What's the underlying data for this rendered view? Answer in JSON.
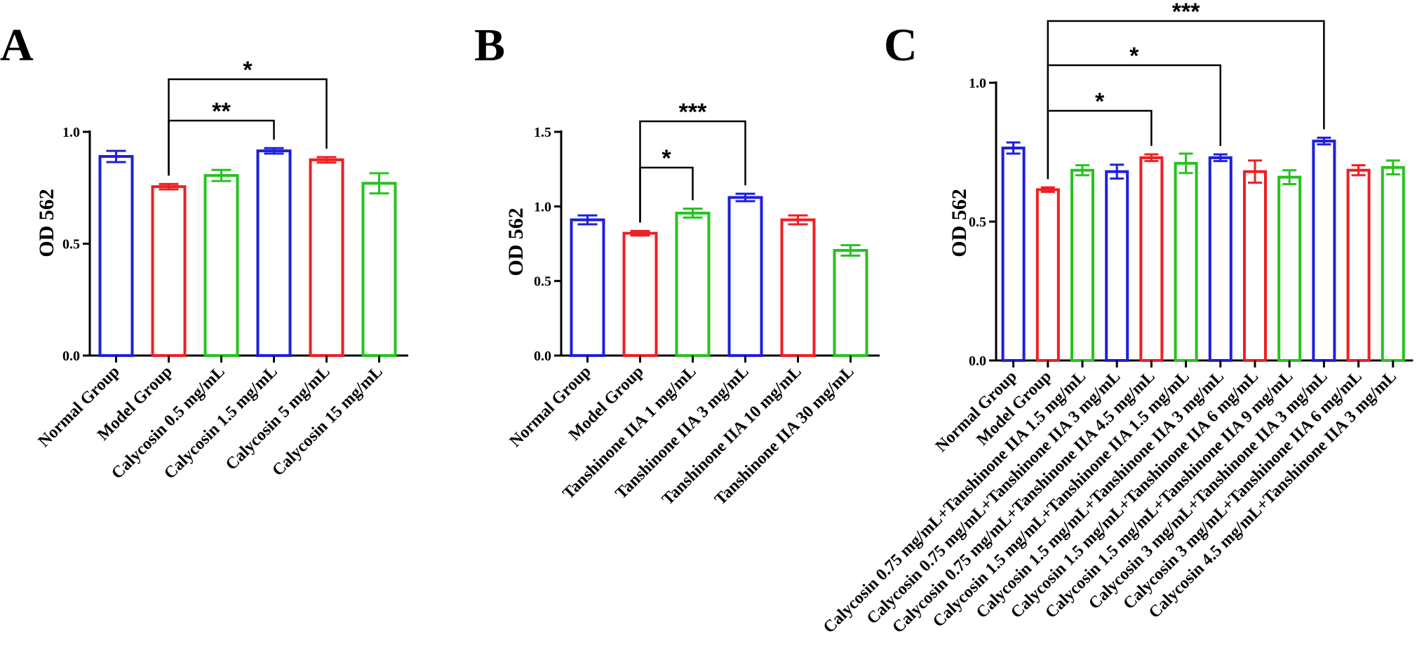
{
  "colors": {
    "blue": "#1f1fdc",
    "red": "#ee1f24",
    "green": "#27c21f",
    "axis": "#000000"
  },
  "chart_data": [
    {
      "type": "bar",
      "panel": "A",
      "ylabel": "OD 562",
      "ylim": [
        0,
        1.0
      ],
      "yticks": [
        "0.0",
        "0.5",
        "1.0"
      ],
      "categories": [
        "Normal Group",
        "Model Group",
        "Calycosin 0.5 mg/mL",
        "Calycosin 1.5 mg/mL",
        "Calycosin 5 mg/mL",
        "Calycosin 15 mg/mL"
      ],
      "values": [
        0.89,
        0.755,
        0.805,
        0.915,
        0.875,
        0.77
      ],
      "errors": [
        0.025,
        0.012,
        0.025,
        0.012,
        0.012,
        0.045
      ],
      "bar_colors": [
        "blue",
        "red",
        "green",
        "blue",
        "red",
        "green"
      ],
      "significance": [
        {
          "from": 1,
          "to": 3,
          "label": "**"
        },
        {
          "from": 1,
          "to": 4,
          "label": "*"
        }
      ]
    },
    {
      "type": "bar",
      "panel": "B",
      "ylabel": "OD 562",
      "ylim": [
        0,
        1.5
      ],
      "yticks": [
        "0.0",
        "0.5",
        "1.0",
        "1.5"
      ],
      "categories": [
        "Normal Group",
        "Model Group",
        "Tanshinone IIA 1 mg/mL",
        "Tanshinone IIA 3 mg/mL",
        "Tanshinone IIA 10 mg/mL",
        "Tanshinone IIA 30 mg/mL"
      ],
      "values": [
        0.91,
        0.82,
        0.955,
        1.06,
        0.91,
        0.705
      ],
      "errors": [
        0.03,
        0.015,
        0.03,
        0.025,
        0.03,
        0.035
      ],
      "bar_colors": [
        "blue",
        "red",
        "green",
        "blue",
        "red",
        "green"
      ],
      "significance": [
        {
          "from": 1,
          "to": 2,
          "label": "*"
        },
        {
          "from": 1,
          "to": 3,
          "label": "***"
        }
      ]
    },
    {
      "type": "bar",
      "panel": "C",
      "ylabel": "OD 562",
      "ylim": [
        0,
        1.0
      ],
      "yticks": [
        "0.0",
        "0.5",
        "1.0"
      ],
      "categories": [
        "Normal Group",
        "Model Group",
        "Calycosin 0.75 mg/mL+Tanshinone IIA 1.5 mg/mL",
        "Calycosin 0.75 mg/mL+Tanshinone IIA 3 mg/mL",
        "Calycosin 0.75 mg/mL+Tanshinone IIA 4.5 mg/mL",
        "Calycosin 1.5 mg/mL+Tanshinone IIA 1.5 mg/mL",
        "Calycosin 1.5 mg/mL+Tanshinone IIA 3 mg/mL",
        "Calycosin 1.5 mg/mL+Tanshinone IIA 6 mg/mL",
        "Calycosin 1.5 mg/mL+Tanshinone IIA 9 mg/mL",
        "Calycosin 3 mg/mL+Tanshinone IIA 3 mg/mL",
        "Calycosin 3 mg/mL+Tanshinone IIA 6 mg/mL",
        "Calycosin 4.5 mg/mL+Tanshinone IIA 3 mg/mL"
      ],
      "values": [
        0.765,
        0.615,
        0.685,
        0.68,
        0.73,
        0.71,
        0.73,
        0.68,
        0.66,
        0.79,
        0.685,
        0.695
      ],
      "errors": [
        0.02,
        0.008,
        0.018,
        0.025,
        0.012,
        0.035,
        0.012,
        0.04,
        0.025,
        0.012,
        0.018,
        0.025
      ],
      "bar_colors": [
        "blue",
        "red",
        "green",
        "blue",
        "red",
        "green",
        "blue",
        "red",
        "green",
        "blue",
        "red",
        "green"
      ],
      "significance": [
        {
          "from": 1,
          "to": 4,
          "label": "*"
        },
        {
          "from": 1,
          "to": 6,
          "label": "*"
        },
        {
          "from": 1,
          "to": 9,
          "label": "***"
        }
      ]
    }
  ]
}
